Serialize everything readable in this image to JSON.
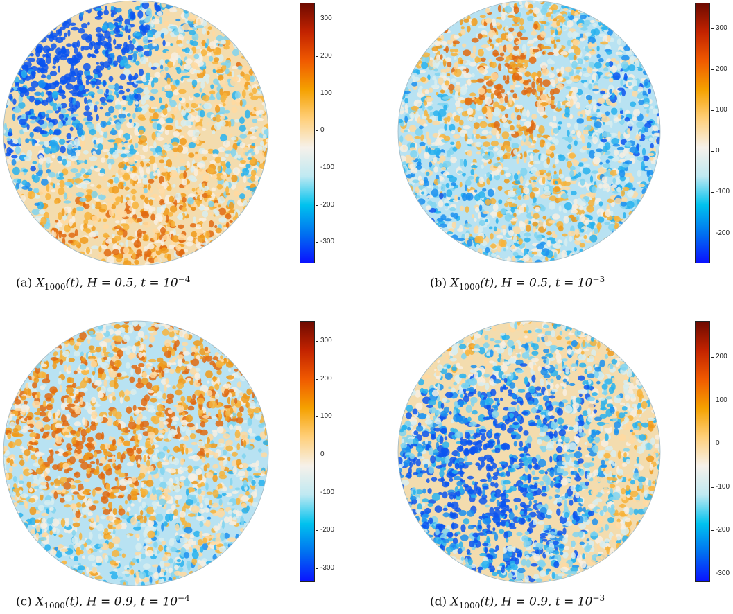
{
  "colormap": {
    "stops": [
      "#0a12ff",
      "#0070f0",
      "#00c2ee",
      "#bfe9f2",
      "#f6f1ea",
      "#ffcf7a",
      "#f5a100",
      "#f05a00",
      "#c32300",
      "#6e0a00"
    ],
    "blue": "#1ea9ea",
    "orange": "#f0a628",
    "light": "#f7efe2"
  },
  "panels": [
    {
      "id": "a",
      "caption": {
        "label": "(a)",
        "var": "X",
        "sub": "1000",
        "arg": "(t)",
        "h": "H = 0.5",
        "t": "t = 10",
        "exp": "−4"
      },
      "colorbar": {
        "ticks": [
          "300",
          "200",
          "100",
          "0",
          "-100",
          "-200",
          "-300"
        ],
        "tick_values": [
          300,
          200,
          100,
          0,
          -100,
          -200,
          -300
        ],
        "min": -355,
        "max": 345
      },
      "field": {
        "seed": 11,
        "bias": 0.15
      }
    },
    {
      "id": "b",
      "caption": {
        "label": "(b)",
        "var": "X",
        "sub": "1000",
        "arg": "(t)",
        "h": "H = 0.5",
        "t": "t = 10",
        "exp": "−3"
      },
      "colorbar": {
        "ticks": [
          "300",
          "200",
          "100",
          "0",
          "-100",
          "-200"
        ],
        "tick_values": [
          300,
          200,
          100,
          0,
          -100,
          -200
        ],
        "min": -272,
        "max": 365
      },
      "field": {
        "seed": 23,
        "bias": -0.35
      }
    },
    {
      "id": "c",
      "caption": {
        "label": "(c)",
        "var": "X",
        "sub": "1000",
        "arg": "(t)",
        "h": "H = 0.9",
        "t": "t = 10",
        "exp": "−4"
      },
      "colorbar": {
        "ticks": [
          "300",
          "200",
          "100",
          "0",
          "-100",
          "-200",
          "-300"
        ],
        "tick_values": [
          300,
          200,
          100,
          0,
          -100,
          -200,
          -300
        ],
        "min": -335,
        "max": 355
      },
      "field": {
        "seed": 37,
        "bias": -0.1
      }
    },
    {
      "id": "d",
      "caption": {
        "label": "(d)",
        "var": "X",
        "sub": "1000",
        "arg": "(t)",
        "h": "H = 0.9",
        "t": "t = 10",
        "exp": "−3"
      },
      "colorbar": {
        "ticks": [
          "200",
          "100",
          "0",
          "-100",
          "-200",
          "-300"
        ],
        "tick_values": [
          200,
          100,
          0,
          -100,
          -200,
          -300
        ],
        "min": -318,
        "max": 285
      },
      "field": {
        "seed": 53,
        "bias": 0.25
      }
    }
  ]
}
